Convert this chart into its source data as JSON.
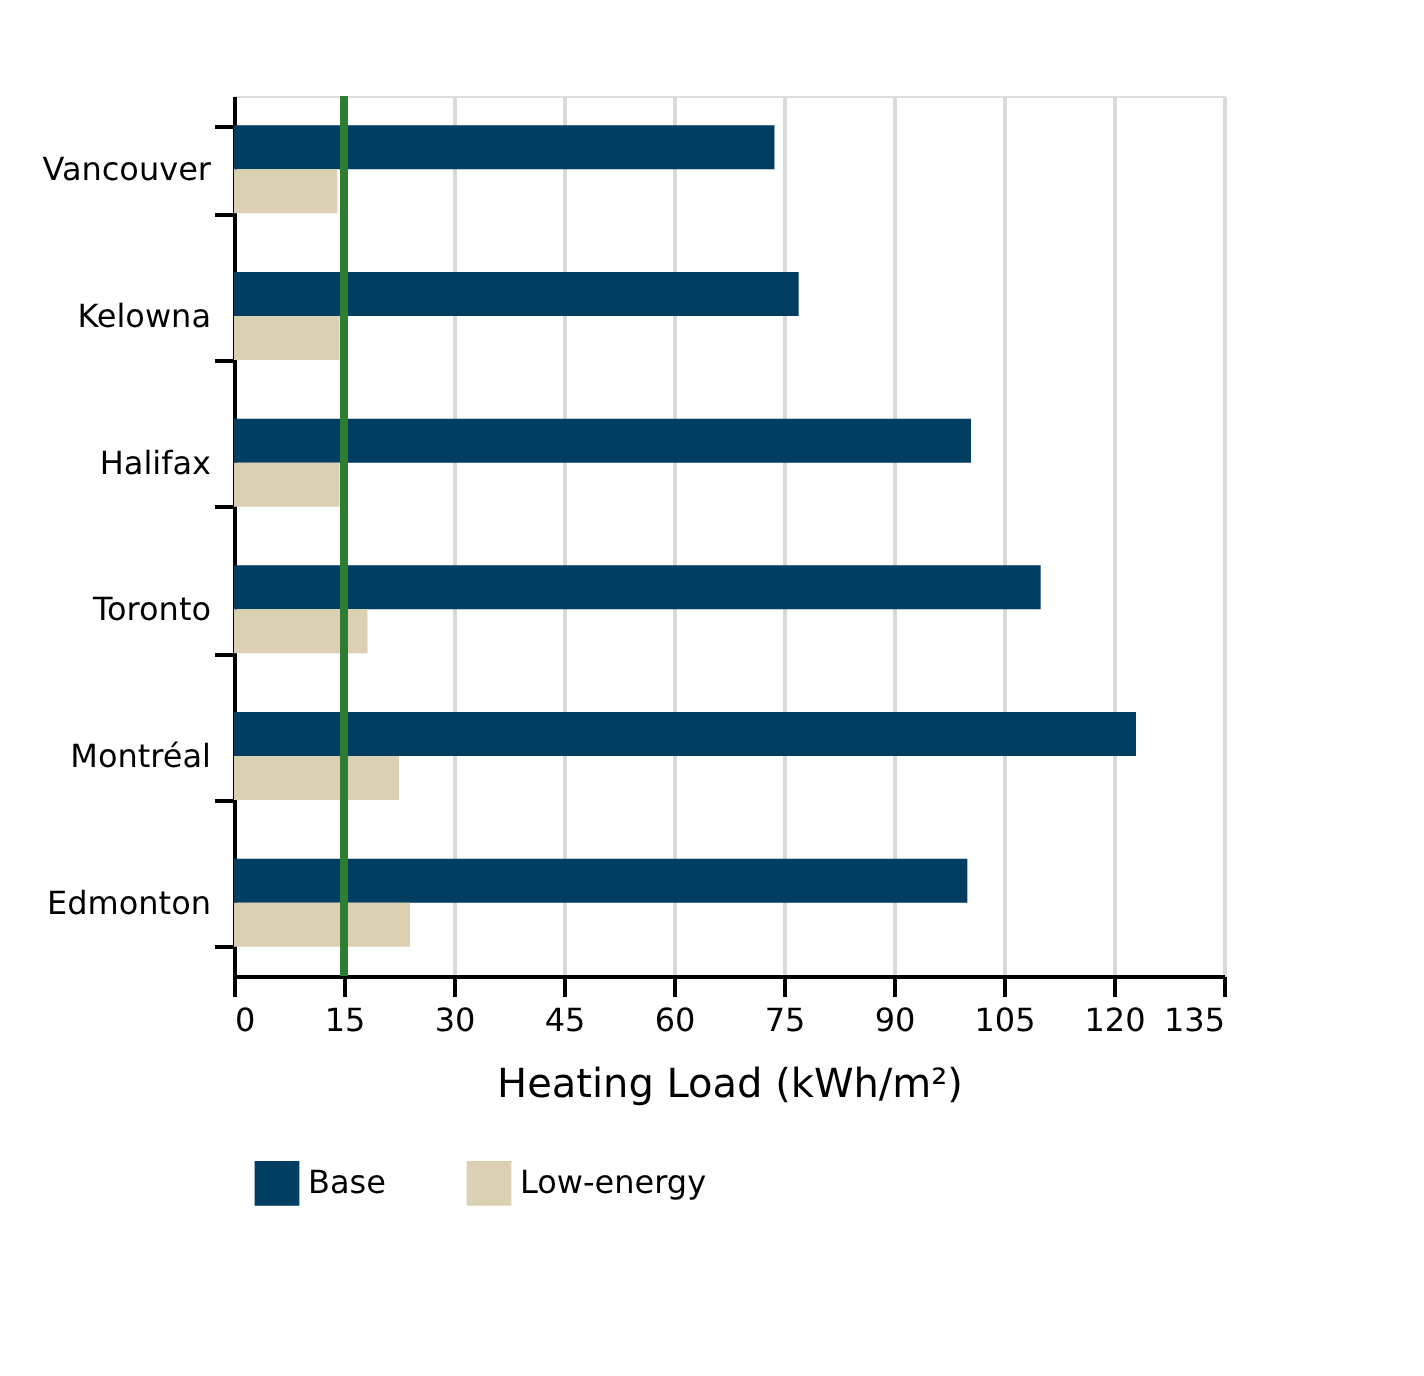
{
  "chart_data": {
    "type": "bar",
    "orientation": "horizontal",
    "xlabel": "Heating Load (kWh/m²)",
    "categories": [
      "Vancouver",
      "Kelowna",
      "Halifax",
      "Toronto",
      "Montréal",
      "Edmonton"
    ],
    "series": [
      {
        "name": "Base",
        "color": "#023e62",
        "values": [
          73.7,
          77,
          100.5,
          110,
          123,
          100
        ]
      },
      {
        "name": "Low-energy",
        "color": "#dbd0b1",
        "values": [
          14.1,
          14.4,
          14.4,
          18.2,
          22.5,
          24
        ]
      }
    ],
    "xlim": [
      0,
      135
    ],
    "xticks": [
      0,
      15,
      30,
      45,
      60,
      75,
      90,
      105,
      120,
      135
    ],
    "ref_lines": [
      {
        "axis": "x",
        "value": 15,
        "color": "#2e7d32"
      }
    ],
    "grid": "x",
    "legend": "bottom"
  }
}
